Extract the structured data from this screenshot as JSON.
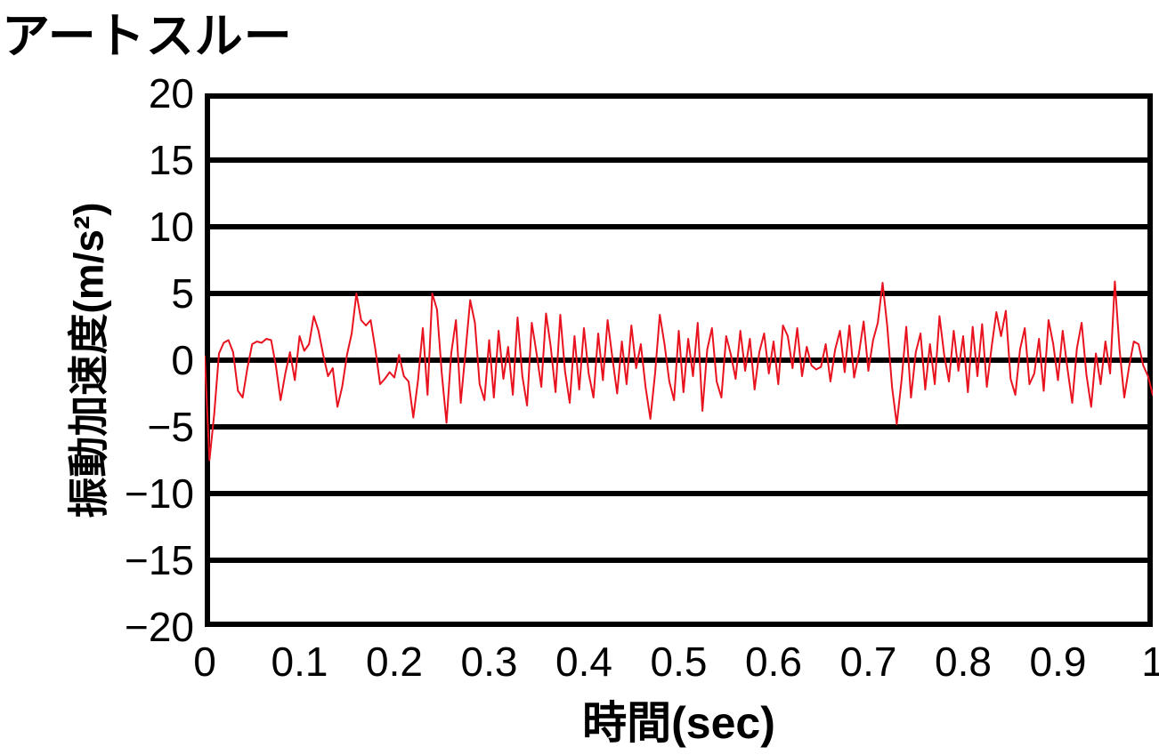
{
  "title": "アートスルー",
  "colors": {
    "background": "#ffffff",
    "axis": "#000000",
    "text": "#000000",
    "line": "#e8131f"
  },
  "chart_data": {
    "type": "line",
    "title": "アートスルー",
    "xlabel": "時間(sec)",
    "ylabel": "振動加速度(m/s²)",
    "x_range": [
      0,
      1
    ],
    "y_range": [
      -20,
      20
    ],
    "x_tick_values": [
      0,
      0.1,
      0.2,
      0.3,
      0.4,
      0.5,
      0.6,
      0.7,
      0.8,
      0.9,
      1
    ],
    "x_tick_labels": [
      "0",
      "0.1",
      "0.2",
      "0.3",
      "0.4",
      "0.5",
      "0.6",
      "0.7",
      "0.8",
      "0.9",
      "1"
    ],
    "y_tick_values": [
      20,
      15,
      10,
      5,
      0,
      -5,
      -10,
      -15,
      -20
    ],
    "y_tick_labels": [
      "20",
      "15",
      "10",
      "5",
      "0",
      "−5",
      "−10",
      "−15",
      "−20"
    ],
    "grid": "horizontal-major",
    "legend": "none",
    "series": [
      {
        "name": "振動加速度",
        "color": "#e8131f",
        "x_start": 0,
        "x_step": 0.005,
        "y": [
          0.3,
          -7.5,
          -4,
          0.5,
          1.3,
          1.5,
          0.6,
          -2.3,
          -2.8,
          -0.6,
          1.2,
          1.4,
          1.3,
          1.6,
          1.5,
          -0.4,
          -3,
          -1,
          0.6,
          -1.5,
          1.8,
          0.7,
          1.2,
          3.3,
          2.2,
          0.4,
          -1.2,
          -0.6,
          -3.5,
          -2,
          0.4,
          2,
          5,
          3,
          2.6,
          3,
          0.8,
          -1.8,
          -1.4,
          -0.9,
          -1.3,
          0.4,
          -1.2,
          -1.6,
          -4.3,
          -1.5,
          2.4,
          -2.6,
          5,
          3.8,
          -1,
          -4.7,
          0.5,
          3,
          -3.2,
          0.6,
          4.5,
          2.8,
          -1.8,
          -3,
          1.5,
          -2.8,
          2.2,
          -1.4,
          1,
          -2.6,
          3.2,
          -1.2,
          -3.4,
          2.8,
          0.5,
          -2,
          3.5,
          1,
          -2.4,
          3.4,
          -0.8,
          -3.2,
          1.8,
          -2.2,
          2.4,
          -1,
          -2.8,
          2,
          -1.5,
          3,
          0.2,
          -2.5,
          1.4,
          -1.8,
          2.6,
          -0.6,
          1.2,
          -2,
          -4.4,
          -1,
          3.4,
          1.2,
          -1.6,
          -3,
          2.2,
          -2.4,
          1.6,
          -1.2,
          2.8,
          -3.8,
          0.8,
          2.4,
          -1.6,
          -2.8,
          1.8,
          0.4,
          -1.4,
          2.2,
          -0.8,
          1.6,
          -2.2,
          0.6,
          2,
          -1,
          1.4,
          -1.8,
          2.6,
          1.8,
          -0.6,
          2.4,
          -1.2,
          1,
          -0.4,
          -0.7,
          -0.5,
          1.2,
          -1.6,
          0.8,
          2.2,
          -0.9,
          2.6,
          -1.3,
          0.5,
          2.9,
          -0.8,
          1.5,
          2.8,
          5.8,
          2.5,
          -2,
          -4.8,
          -1.5,
          2.5,
          -2.8,
          0.6,
          2,
          -2.2,
          1.2,
          -1.8,
          3.3,
          0.4,
          -1.6,
          2.2,
          -0.8,
          1.8,
          -2.4,
          2.5,
          -1.2,
          2.7,
          -2,
          1,
          3.6,
          1.8,
          3.7,
          -1.4,
          -2.6,
          0.8,
          2.4,
          -1.8,
          -1,
          1.6,
          -2.3,
          3,
          1.2,
          -1.5,
          2.2,
          -0.6,
          -3.2,
          0.9,
          2.8,
          -1.1,
          -3.5,
          0.5,
          -1.8,
          1.4,
          -1,
          5.9,
          0.8,
          -2.8,
          -0.5,
          1.4,
          1.2,
          -0.4,
          -1.2,
          -2.6
        ]
      }
    ]
  }
}
